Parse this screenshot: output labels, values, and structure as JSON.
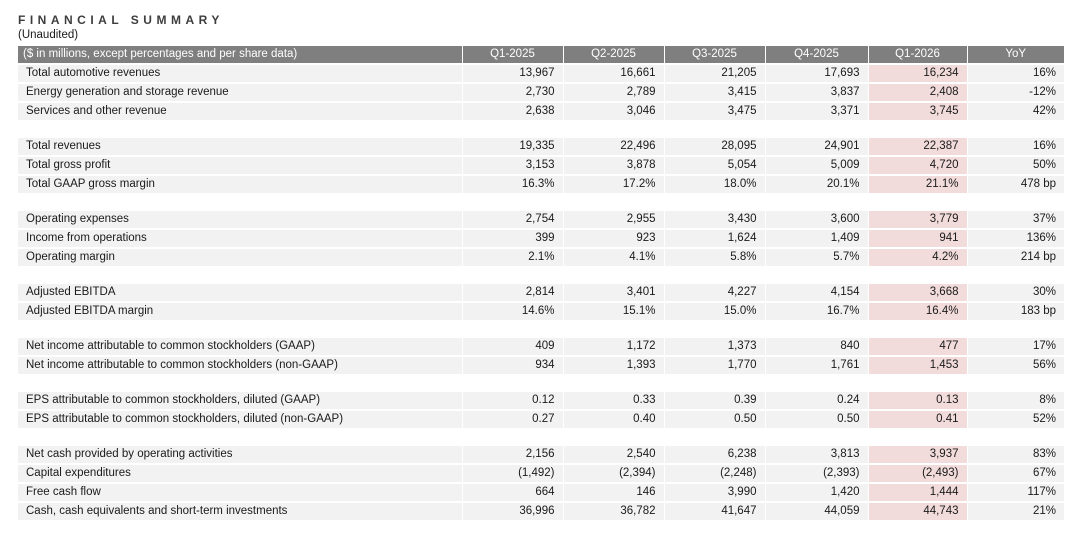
{
  "title": "FINANCIAL SUMMARY",
  "subtitle": "(Unaudited)",
  "colors": {
    "header_bg": "#7f7f7f",
    "header_text": "#ffffff",
    "row_bg": "#f2f2f2",
    "highlight_bg": "#f2dcdb",
    "text": "#1a1a1a"
  },
  "table": {
    "label_header": "($ in millions, except percentages and per share data)",
    "columns": [
      "Q1-2025",
      "Q2-2025",
      "Q3-2025",
      "Q4-2025",
      "Q1-2026",
      "YoY"
    ],
    "highlight_column": "Q1-2026",
    "highlight_column_index": 4,
    "sections": [
      {
        "name": "revenue-breakdown",
        "rows": [
          {
            "label": "Total automotive revenues",
            "values": [
              "13,967",
              "16,661",
              "21,205",
              "17,693",
              "16,234",
              "16%"
            ]
          },
          {
            "label": "Energy generation and storage revenue",
            "values": [
              "2,730",
              "2,789",
              "3,415",
              "3,837",
              "2,408",
              "-12%"
            ]
          },
          {
            "label": "Services and other revenue",
            "values": [
              "2,638",
              "3,046",
              "3,475",
              "3,371",
              "3,745",
              "42%"
            ]
          }
        ]
      },
      {
        "name": "totals",
        "rows": [
          {
            "label": "Total revenues",
            "values": [
              "19,335",
              "22,496",
              "28,095",
              "24,901",
              "22,387",
              "16%"
            ]
          },
          {
            "label": "Total gross profit",
            "values": [
              "3,153",
              "3,878",
              "5,054",
              "5,009",
              "4,720",
              "50%"
            ]
          },
          {
            "label": "Total GAAP gross margin",
            "values": [
              "16.3%",
              "17.2%",
              "18.0%",
              "20.1%",
              "21.1%",
              "478 bp"
            ]
          }
        ]
      },
      {
        "name": "operating",
        "rows": [
          {
            "label": "Operating expenses",
            "values": [
              "2,754",
              "2,955",
              "3,430",
              "3,600",
              "3,779",
              "37%"
            ]
          },
          {
            "label": "Income from operations",
            "values": [
              "399",
              "923",
              "1,624",
              "1,409",
              "941",
              "136%"
            ]
          },
          {
            "label": "Operating margin",
            "values": [
              "2.1%",
              "4.1%",
              "5.8%",
              "5.7%",
              "4.2%",
              "214 bp"
            ]
          }
        ]
      },
      {
        "name": "ebitda",
        "rows": [
          {
            "label": "Adjusted EBITDA",
            "values": [
              "2,814",
              "3,401",
              "4,227",
              "4,154",
              "3,668",
              "30%"
            ]
          },
          {
            "label": "Adjusted EBITDA margin",
            "values": [
              "14.6%",
              "15.1%",
              "15.0%",
              "16.7%",
              "16.4%",
              "183 bp"
            ]
          }
        ]
      },
      {
        "name": "net-income",
        "rows": [
          {
            "label": "Net income attributable to common stockholders (GAAP)",
            "values": [
              "409",
              "1,172",
              "1,373",
              "840",
              "477",
              "17%"
            ]
          },
          {
            "label": "Net income attributable to common stockholders (non-GAAP)",
            "values": [
              "934",
              "1,393",
              "1,770",
              "1,761",
              "1,453",
              "56%"
            ]
          }
        ]
      },
      {
        "name": "eps",
        "rows": [
          {
            "label": "EPS attributable to common stockholders, diluted (GAAP)",
            "values": [
              "0.12",
              "0.33",
              "0.39",
              "0.24",
              "0.13",
              "8%"
            ]
          },
          {
            "label": "EPS attributable to common stockholders, diluted (non-GAAP)",
            "values": [
              "0.27",
              "0.40",
              "0.50",
              "0.50",
              "0.41",
              "52%"
            ]
          }
        ]
      },
      {
        "name": "cash-flow",
        "rows": [
          {
            "label": "Net cash provided by operating activities",
            "values": [
              "2,156",
              "2,540",
              "6,238",
              "3,813",
              "3,937",
              "83%"
            ]
          },
          {
            "label": "Capital expenditures",
            "values": [
              "(1,492)",
              "(2,394)",
              "(2,248)",
              "(2,393)",
              "(2,493)",
              "67%"
            ]
          },
          {
            "label": "Free cash flow",
            "values": [
              "664",
              "146",
              "3,990",
              "1,420",
              "1,444",
              "117%"
            ]
          },
          {
            "label": "Cash, cash equivalents and short-term investments",
            "values": [
              "36,996",
              "36,782",
              "41,647",
              "44,059",
              "44,743",
              "21%"
            ]
          }
        ]
      }
    ]
  }
}
